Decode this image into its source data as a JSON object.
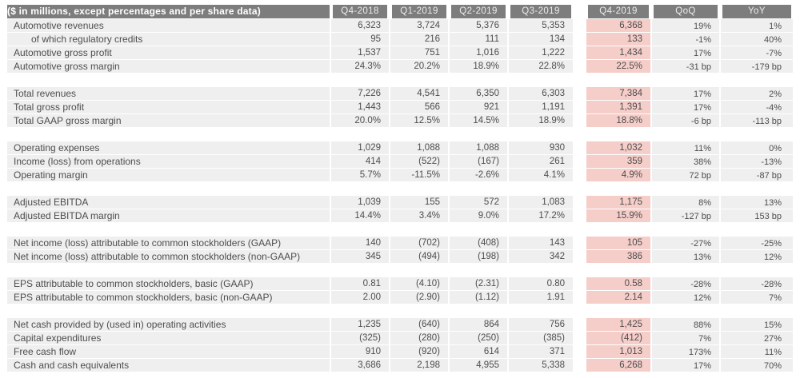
{
  "table": {
    "title_cell": "($ in millions, except percentages and per share data)",
    "columns": [
      "Q4-2018",
      "Q1-2019",
      "Q2-2019",
      "Q3-2019",
      "Q4-2019",
      "QoQ",
      "YoY"
    ],
    "highlight_column": "Q4-2019",
    "sections": [
      {
        "rows": [
          {
            "label": "Automotive revenues",
            "indent": false,
            "values": [
              "6,323",
              "3,724",
              "5,376",
              "5,353",
              "6,368",
              "19%",
              "1%"
            ]
          },
          {
            "label": "of which regulatory credits",
            "indent": true,
            "values": [
              "95",
              "216",
              "111",
              "134",
              "133",
              "-1%",
              "40%"
            ]
          },
          {
            "label": "Automotive gross profit",
            "indent": false,
            "values": [
              "1,537",
              "751",
              "1,016",
              "1,222",
              "1,434",
              "17%",
              "-7%"
            ]
          },
          {
            "label": "Automotive gross margin",
            "indent": false,
            "values": [
              "24.3%",
              "20.2%",
              "18.9%",
              "22.8%",
              "22.5%",
              "-31 bp",
              "-179 bp"
            ]
          }
        ]
      },
      {
        "rows": [
          {
            "label": "Total revenues",
            "indent": false,
            "values": [
              "7,226",
              "4,541",
              "6,350",
              "6,303",
              "7,384",
              "17%",
              "2%"
            ]
          },
          {
            "label": "Total gross profit",
            "indent": false,
            "values": [
              "1,443",
              "566",
              "921",
              "1,191",
              "1,391",
              "17%",
              "-4%"
            ]
          },
          {
            "label": "Total GAAP gross margin",
            "indent": false,
            "values": [
              "20.0%",
              "12.5%",
              "14.5%",
              "18.9%",
              "18.8%",
              "-6 bp",
              "-113 bp"
            ]
          }
        ]
      },
      {
        "rows": [
          {
            "label": "Operating expenses",
            "indent": false,
            "values": [
              "1,029",
              "1,088",
              "1,088",
              "930",
              "1,032",
              "11%",
              "0%"
            ]
          },
          {
            "label": "Income (loss) from operations",
            "indent": false,
            "values": [
              "414",
              "(522)",
              "(167)",
              "261",
              "359",
              "38%",
              "-13%"
            ]
          },
          {
            "label": "Operating margin",
            "indent": false,
            "values": [
              "5.7%",
              "-11.5%",
              "-2.6%",
              "4.1%",
              "4.9%",
              "72 bp",
              "-87 bp"
            ]
          }
        ]
      },
      {
        "rows": [
          {
            "label": "Adjusted EBITDA",
            "indent": false,
            "values": [
              "1,039",
              "155",
              "572",
              "1,083",
              "1,175",
              "8%",
              "13%"
            ]
          },
          {
            "label": "Adjusted EBITDA margin",
            "indent": false,
            "values": [
              "14.4%",
              "3.4%",
              "9.0%",
              "17.2%",
              "15.9%",
              "-127 bp",
              "153 bp"
            ]
          }
        ]
      },
      {
        "rows": [
          {
            "label": "Net income (loss) attributable to common stockholders (GAAP)",
            "indent": false,
            "values": [
              "140",
              "(702)",
              "(408)",
              "143",
              "105",
              "-27%",
              "-25%"
            ]
          },
          {
            "label": "Net income (loss) attributable to common stockholders (non-GAAP)",
            "indent": false,
            "values": [
              "345",
              "(494)",
              "(198)",
              "342",
              "386",
              "13%",
              "12%"
            ]
          }
        ]
      },
      {
        "rows": [
          {
            "label": "EPS attributable to common stockholders, basic (GAAP)",
            "indent": false,
            "values": [
              "0.81",
              "(4.10)",
              "(2.31)",
              "0.80",
              "0.58",
              "-28%",
              "-28%"
            ]
          },
          {
            "label": "EPS attributable to common stockholders, basic (non-GAAP)",
            "indent": false,
            "values": [
              "2.00",
              "(2.90)",
              "(1.12)",
              "1.91",
              "2.14",
              "12%",
              "7%"
            ]
          }
        ]
      },
      {
        "rows": [
          {
            "label": "Net cash provided by (used in) operating activities",
            "indent": false,
            "values": [
              "1,235",
              "(640)",
              "864",
              "756",
              "1,425",
              "88%",
              "15%"
            ]
          },
          {
            "label": "Capital expenditures",
            "indent": false,
            "values": [
              "(325)",
              "(280)",
              "(250)",
              "(385)",
              "(412)",
              "7%",
              "27%"
            ]
          },
          {
            "label": "Free cash flow",
            "indent": false,
            "values": [
              "910",
              "(920)",
              "614",
              "371",
              "1,013",
              "173%",
              "11%"
            ]
          },
          {
            "label": "Cash and cash equivalents",
            "indent": false,
            "values": [
              "3,686",
              "2,198",
              "4,955",
              "5,338",
              "6,268",
              "17%",
              "70%"
            ]
          }
        ]
      }
    ]
  },
  "colors": {
    "header_bg": "#7d7d7d",
    "header_text": "#ffffff",
    "row_bg": "#f0efef",
    "highlight_bg": "#f5cdc9",
    "body_text": "#4d4d4d"
  }
}
